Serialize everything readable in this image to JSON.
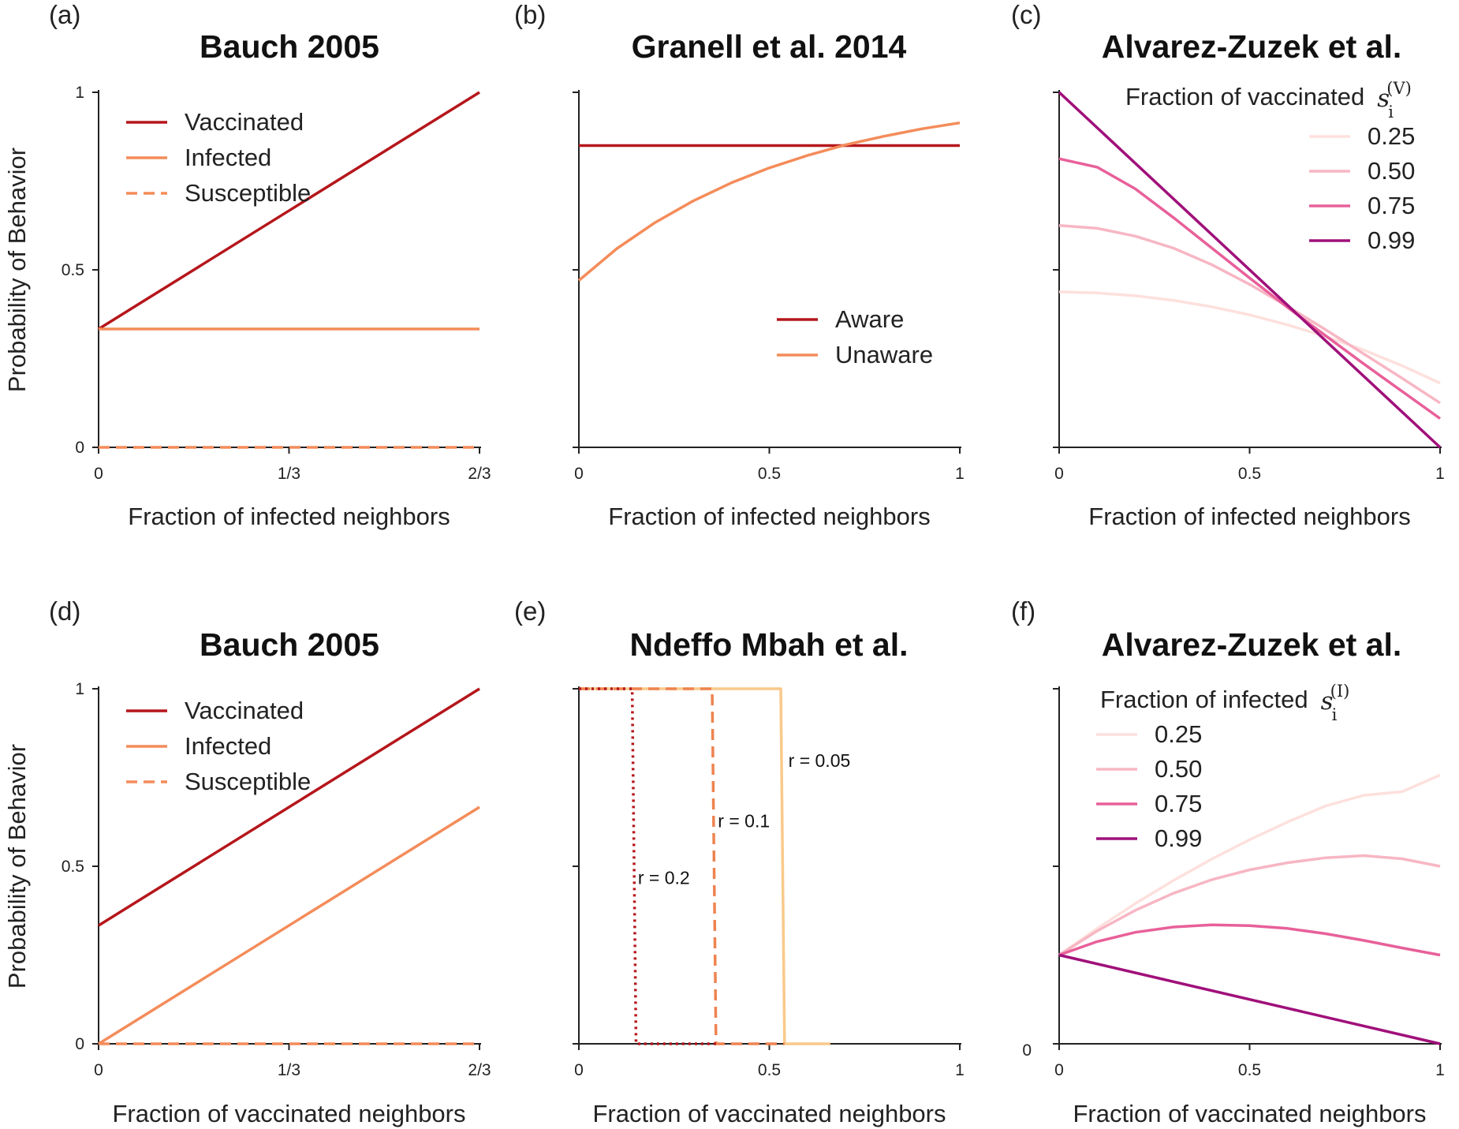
{
  "figure": {
    "ylabel": "Probability of Behavior"
  },
  "chart_data": [
    {
      "panel": "(a)",
      "type": "line",
      "title": "Bauch 2005",
      "xlabel": "Fraction of infected neighbors",
      "ylabel": "Probability of Behavior",
      "xlim": [
        0,
        0.6667
      ],
      "ylim": [
        0,
        1
      ],
      "x_ticks": [
        0,
        0.3333,
        0.6667
      ],
      "x_tick_labels": [
        "0",
        "1/3",
        "2/3"
      ],
      "y_ticks": [
        0,
        0.5,
        1
      ],
      "y_tick_labels": [
        "0",
        "0.5",
        "1"
      ],
      "legend_position": "top-left",
      "series": [
        {
          "name": "Vaccinated",
          "color": "#b5161b",
          "dash": "solid",
          "x": [
            0,
            0.6667
          ],
          "y": [
            0.3333,
            1.0
          ]
        },
        {
          "name": "Infected",
          "color": "#f48c5a",
          "dash": "solid",
          "x": [
            0,
            0.6667
          ],
          "y": [
            0.3333,
            0.3333
          ]
        },
        {
          "name": "Susceptible",
          "color": "#f48c5a",
          "dash": "dashed",
          "x": [
            0,
            0.6667
          ],
          "y": [
            0,
            0
          ]
        }
      ]
    },
    {
      "panel": "(b)",
      "type": "line",
      "title": "Granell et al. 2014",
      "xlabel": "Fraction of infected neighbors",
      "xlim": [
        0,
        1
      ],
      "ylim": [
        0,
        1
      ],
      "x_ticks": [
        0,
        0.5,
        1
      ],
      "x_tick_labels": [
        "0",
        "0.5",
        "1"
      ],
      "y_ticks": [
        0,
        0.5,
        1
      ],
      "y_tick_labels": [
        "",
        "",
        ""
      ],
      "legend_position": "center-right",
      "series": [
        {
          "name": "Aware",
          "color": "#b5161b",
          "dash": "solid",
          "x": [
            0,
            1
          ],
          "y": [
            0.85,
            0.85
          ]
        },
        {
          "name": "Unaware",
          "color": "#f48c5a",
          "dash": "solid",
          "x": [
            0,
            0.1,
            0.2,
            0.3,
            0.4,
            0.5,
            0.6,
            0.7,
            0.8,
            0.9,
            1.0
          ],
          "y": [
            0.47,
            0.56,
            0.633,
            0.694,
            0.745,
            0.787,
            0.822,
            0.852,
            0.876,
            0.897,
            0.914
          ]
        }
      ]
    },
    {
      "panel": "(c)",
      "type": "line",
      "title": "Alvarez-Zuzek et al.",
      "xlabel": "Fraction of infected neighbors",
      "xlim": [
        0,
        1
      ],
      "ylim": [
        0,
        1
      ],
      "x_ticks": [
        0,
        0.5,
        1
      ],
      "x_tick_labels": [
        "0",
        "0.5",
        "1"
      ],
      "y_ticks": [
        0,
        0.5,
        1
      ],
      "y_tick_labels": [
        "",
        "",
        ""
      ],
      "legend_title": "Fraction of vaccinated",
      "legend_symbol": "s",
      "legend_subscript": "i",
      "legend_superscript": "(V)",
      "legend_position": "top-right",
      "series": [
        {
          "name": "0.25",
          "color": "#fde0dd",
          "dash": "solid",
          "x": [
            0,
            0.1,
            0.2,
            0.3,
            0.4,
            0.5,
            0.6,
            0.7,
            0.8,
            0.9,
            1.0
          ],
          "y": [
            0.438,
            0.435,
            0.427,
            0.414,
            0.396,
            0.373,
            0.345,
            0.312,
            0.274,
            0.23,
            0.181
          ]
        },
        {
          "name": "0.50",
          "color": "#f7b6c4",
          "dash": "solid",
          "x": [
            0,
            0.1,
            0.2,
            0.3,
            0.4,
            0.5,
            0.6,
            0.7,
            0.8,
            0.9,
            1.0
          ],
          "y": [
            0.625,
            0.617,
            0.595,
            0.561,
            0.515,
            0.459,
            0.397,
            0.331,
            0.263,
            0.195,
            0.125
          ]
        },
        {
          "name": "0.75",
          "color": "#e8609a",
          "dash": "solid",
          "x": [
            0,
            0.1,
            0.2,
            0.3,
            0.4,
            0.5,
            0.6,
            0.7,
            0.8,
            0.9,
            1.0
          ],
          "y": [
            0.813,
            0.789,
            0.728,
            0.647,
            0.562,
            0.477,
            0.394,
            0.314,
            0.235,
            0.158,
            0.081
          ]
        },
        {
          "name": "0.99",
          "color": "#a0107a",
          "dash": "solid",
          "x": [
            0,
            1
          ],
          "y": [
            1.0,
            0.0
          ]
        }
      ]
    },
    {
      "panel": "(d)",
      "type": "line",
      "title": "Bauch 2005",
      "xlabel": "Fraction of vaccinated neighbors",
      "ylabel": "Probability of Behavior",
      "xlim": [
        0,
        0.6667
      ],
      "ylim": [
        0,
        1
      ],
      "x_ticks": [
        0,
        0.3333,
        0.6667
      ],
      "x_tick_labels": [
        "0",
        "1/3",
        "2/3"
      ],
      "y_ticks": [
        0,
        0.5,
        1
      ],
      "y_tick_labels": [
        "0",
        "0.5",
        "1"
      ],
      "legend_position": "top-left",
      "series": [
        {
          "name": "Vaccinated",
          "color": "#b5161b",
          "dash": "solid",
          "x": [
            0,
            0.6667
          ],
          "y": [
            0.3333,
            1.0
          ]
        },
        {
          "name": "Infected",
          "color": "#f48c5a",
          "dash": "solid",
          "x": [
            0,
            0.6667
          ],
          "y": [
            0.0,
            0.6667
          ]
        },
        {
          "name": "Susceptible",
          "color": "#f48c5a",
          "dash": "dashed",
          "x": [
            0,
            0.6667
          ],
          "y": [
            0,
            0
          ]
        }
      ]
    },
    {
      "panel": "(e)",
      "type": "line",
      "title": "Ndeffo Mbah et al.",
      "xlabel": "Fraction of vaccinated neighbors",
      "xlim": [
        0,
        1
      ],
      "ylim": [
        0,
        1
      ],
      "x_ticks": [
        0,
        0.5,
        1
      ],
      "x_tick_labels": [
        "0",
        "0.5",
        "1"
      ],
      "y_ticks": [
        0,
        0.5,
        1
      ],
      "y_tick_labels": [
        "",
        "",
        ""
      ],
      "series": [
        {
          "label": "r = 0.05",
          "color": "#f9c98a",
          "dash": "solid",
          "x": [
            0,
            0.53,
            0.54,
            0.66
          ],
          "y": [
            1,
            1,
            0,
            0
          ]
        },
        {
          "label": "r = 0.1",
          "color": "#ee8350",
          "dash": "dashed",
          "x": [
            0,
            0.35,
            0.36,
            0.54
          ],
          "y": [
            1,
            1,
            0,
            0
          ]
        },
        {
          "label": "r = 0.2",
          "color": "#b5161b",
          "dash": "dotted",
          "x": [
            0,
            0.14,
            0.15,
            0.36
          ],
          "y": [
            1,
            1,
            0,
            0
          ]
        }
      ],
      "annotations": [
        {
          "text": "r = 0.05",
          "x": 0.55,
          "y": 0.78
        },
        {
          "text": "r = 0.1",
          "x": 0.365,
          "y": 0.61
        },
        {
          "text": "r = 0.2",
          "x": 0.155,
          "y": 0.45
        }
      ]
    },
    {
      "panel": "(f)",
      "type": "line",
      "title": "Alvarez-Zuzek et al.",
      "xlabel": "Fraction of vaccinated neighbors",
      "xlim": [
        0,
        1
      ],
      "ylim": [
        0,
        1
      ],
      "x_ticks": [
        0,
        0.5,
        1
      ],
      "x_tick_labels": [
        "0",
        "0.5",
        "1"
      ],
      "y_ticks": [
        0,
        0.5,
        1
      ],
      "y_tick_labels": [
        "0",
        "",
        ""
      ],
      "legend_title": "Fraction of infected",
      "legend_symbol": "s",
      "legend_subscript": "i",
      "legend_superscript": "(I)",
      "legend_position": "top-left",
      "series": [
        {
          "name": "0.25",
          "color": "#fde0dd",
          "dash": "solid",
          "x": [
            0,
            0.1,
            0.2,
            0.3,
            0.4,
            0.5,
            0.6,
            0.7,
            0.8,
            0.9,
            1.0
          ],
          "y": [
            0.25,
            0.325,
            0.395,
            0.46,
            0.52,
            0.575,
            0.625,
            0.67,
            0.7,
            0.71,
            0.757
          ]
        },
        {
          "name": "0.50",
          "color": "#f7b6c4",
          "dash": "solid",
          "x": [
            0,
            0.1,
            0.2,
            0.3,
            0.4,
            0.5,
            0.6,
            0.7,
            0.8,
            0.9,
            1.0
          ],
          "y": [
            0.25,
            0.318,
            0.376,
            0.424,
            0.462,
            0.49,
            0.51,
            0.524,
            0.53,
            0.521,
            0.5
          ]
        },
        {
          "name": "0.75",
          "color": "#e8609a",
          "dash": "solid",
          "x": [
            0,
            0.1,
            0.2,
            0.3,
            0.4,
            0.5,
            0.6,
            0.7,
            0.8,
            0.9,
            1.0
          ],
          "y": [
            0.25,
            0.288,
            0.314,
            0.329,
            0.335,
            0.333,
            0.325,
            0.31,
            0.291,
            0.27,
            0.25
          ]
        },
        {
          "name": "0.99",
          "color": "#a0107a",
          "dash": "solid",
          "x": [
            0,
            1
          ],
          "y": [
            0.25,
            0.0
          ]
        }
      ]
    }
  ]
}
